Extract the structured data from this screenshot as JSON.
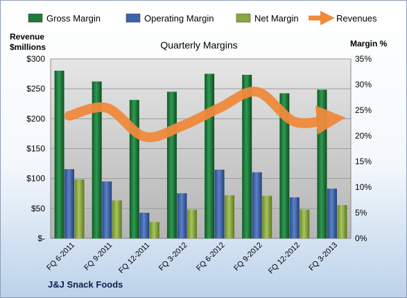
{
  "chart_data": {
    "type": "bar",
    "title": "Quarterly Margins",
    "company": "J&J Snack Foods",
    "categories": [
      "FQ 6-2011",
      "FQ 9-2011",
      "FQ 12-2011",
      "FQ 3-2012",
      "FQ 6-2012",
      "FQ 9-2012",
      "FQ 12-2012",
      "FQ 3-2013"
    ],
    "left_axis": {
      "title_line1": "Revenue",
      "title_line2": "$millions",
      "range": [
        0,
        300
      ],
      "ticks": [
        0,
        50,
        100,
        150,
        200,
        250,
        300
      ],
      "tick_labels": [
        "$-",
        "$50",
        "$100",
        "$150",
        "$200",
        "$250",
        "$300"
      ]
    },
    "right_axis": {
      "title": "Margin %",
      "range": [
        0,
        35
      ],
      "ticks": [
        0,
        5,
        10,
        15,
        20,
        25,
        30,
        35
      ],
      "tick_labels": [
        "0%",
        "5%",
        "10%",
        "15%",
        "20%",
        "25%",
        "30%",
        "35%"
      ]
    },
    "series": [
      {
        "name": "Gross Margin",
        "kind": "bar",
        "axis": "right",
        "color": "#1e7a3c",
        "values": [
          32.7,
          30.6,
          27.0,
          28.6,
          32.1,
          31.9,
          28.3,
          29.0
        ]
      },
      {
        "name": "Operating Margin",
        "kind": "bar",
        "axis": "right",
        "color": "#3e63a8",
        "values": [
          13.5,
          11.1,
          5.0,
          8.8,
          13.4,
          12.9,
          8.0,
          9.7
        ]
      },
      {
        "name": "Net Margin",
        "kind": "bar",
        "axis": "right",
        "color": "#8aa83c",
        "values": [
          11.5,
          7.4,
          3.2,
          5.6,
          8.4,
          8.3,
          5.6,
          6.5
        ]
      },
      {
        "name": "Revenues",
        "kind": "line",
        "axis": "left",
        "color": "#f08a3c",
        "values": [
          205,
          218,
          170,
          188,
          218,
          245,
          195,
          200
        ]
      }
    ],
    "grid": true,
    "legend_position": "top"
  }
}
